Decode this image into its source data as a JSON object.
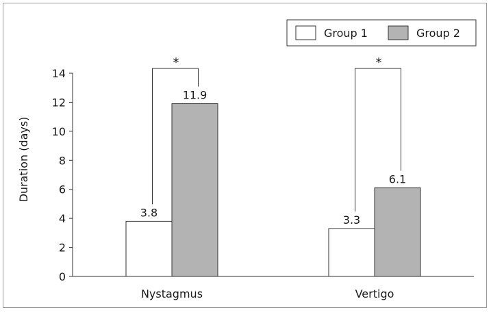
{
  "chart_data": {
    "type": "bar",
    "title": "",
    "xlabel": "",
    "ylabel": "Duration (days)",
    "ylim": [
      0,
      14
    ],
    "yticks": [
      "0",
      "2",
      "4",
      "6",
      "8",
      "10",
      "12",
      "14"
    ],
    "categories": [
      "Nystagmus",
      "Vertigo"
    ],
    "series": [
      {
        "name": "Group 1",
        "values": [
          3.8,
          3.3
        ],
        "labels": [
          "3.8",
          "3.3"
        ],
        "color": "#ffffff"
      },
      {
        "name": "Group 2",
        "values": [
          11.9,
          6.1
        ],
        "labels": [
          "11.9",
          "6.1"
        ],
        "color": "#b3b3b3"
      }
    ],
    "significance": [
      {
        "category": "Nystagmus",
        "mark": "*"
      },
      {
        "category": "Vertigo",
        "mark": "*"
      }
    ],
    "legend_position": "top-right",
    "grid": false
  }
}
